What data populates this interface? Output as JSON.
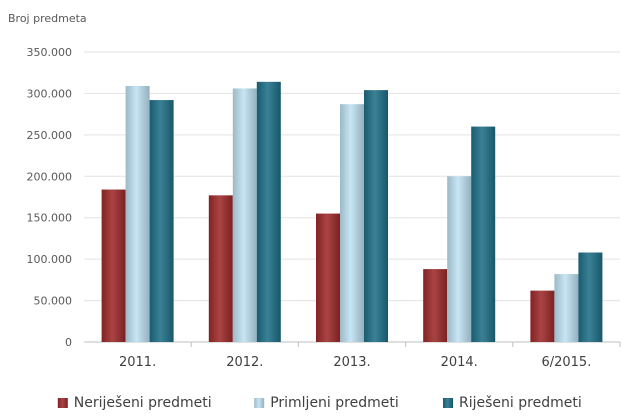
{
  "chart_data": {
    "type": "bar",
    "ylabel": "Broj predmeta",
    "ylim": [
      0,
      350000
    ],
    "yticks": [
      0,
      50000,
      100000,
      150000,
      200000,
      250000,
      300000,
      350000
    ],
    "ytick_labels": [
      "0",
      "50.000",
      "100.000",
      "150.000",
      "200.000",
      "250.000",
      "300.000",
      "350.000"
    ],
    "categories": [
      "2011.",
      "2012.",
      "2013.",
      "2014.",
      "6/2015."
    ],
    "series": [
      {
        "name": "Neriješeni predmeti",
        "color": "#9e2a2b",
        "values": [
          184000,
          177000,
          155000,
          88000,
          62000
        ]
      },
      {
        "name": "Primljeni predmeti",
        "color": "#bfe2f3",
        "values": [
          309000,
          306000,
          287000,
          200000,
          82000
        ]
      },
      {
        "name": "Riješeni predmeti",
        "color": "#1f7088",
        "values": [
          292000,
          314000,
          304000,
          260000,
          108000
        ]
      }
    ],
    "grid": true,
    "legend_position": "bottom"
  }
}
